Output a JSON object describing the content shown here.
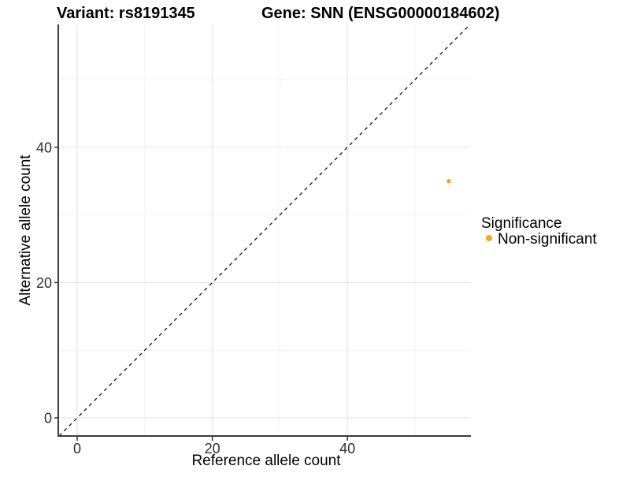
{
  "header": {
    "variant_title": "Variant: rs8191345",
    "gene_title": "Gene: SNN (ENSG00000184602)"
  },
  "axes": {
    "x_label": "Reference allele count",
    "y_label": "Alternative allele count"
  },
  "legend": {
    "title": "Significance",
    "items": [
      {
        "label": "Non-significant",
        "color": "#FFA216",
        "marker": "circle-icon"
      }
    ]
  },
  "colors": {
    "point": "#FFA216",
    "axis_line": "#3C3C3C",
    "tick_mark": "#333333",
    "grid_major": "#E6E6E6",
    "grid_minor": "#F3F3F3",
    "identity_line": "#111111",
    "background": "#FFFFFF"
  },
  "chart_data": {
    "type": "scatter",
    "title": "Variant: rs8191345 — Gene: SNN (ENSG00000184602)",
    "xlabel": "Reference allele count",
    "ylabel": "Alternative allele count",
    "xlim": [
      -2.7,
      58.3
    ],
    "ylim": [
      -2.7,
      58.3
    ],
    "x_major_ticks": [
      0,
      20,
      40
    ],
    "y_major_ticks": [
      0,
      20,
      40
    ],
    "x_minor_ticks": [
      10,
      30,
      50
    ],
    "y_minor_ticks": [
      10,
      30,
      50
    ],
    "grid": "major+minor",
    "legend_position": "right",
    "legend_title": "Significance",
    "series": [
      {
        "name": "Non-significant",
        "color": "#FFA216",
        "points": [
          {
            "x": 55,
            "y": 35
          }
        ]
      }
    ],
    "reference_line": {
      "type": "identity",
      "style": "dashed",
      "color": "#111111"
    }
  }
}
